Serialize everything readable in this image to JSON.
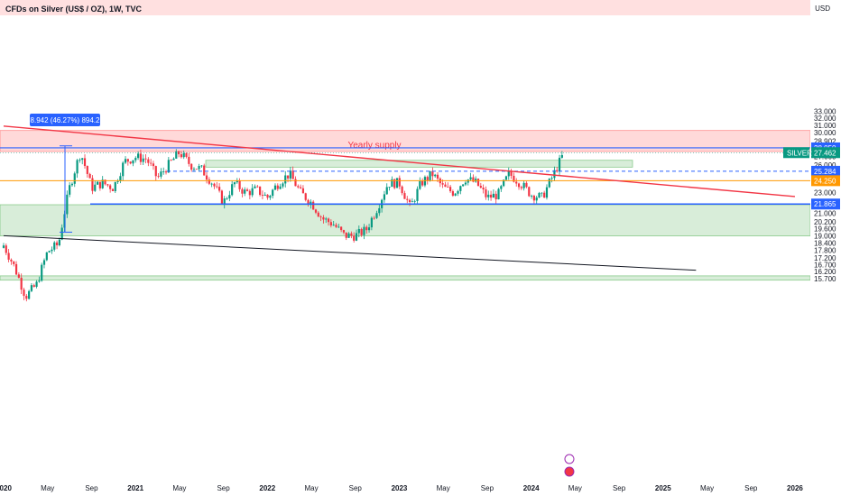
{
  "header": {
    "title": "CFDs on Silver (US$ / OZ), 1W, TVC",
    "currency": "USD"
  },
  "annotations": {
    "supply_label": "Yearly supply",
    "measure_label": "8.942 (46.27%) 894.2"
  },
  "price_axis": {
    "ticks": [
      "33.000",
      "32.000",
      "31.000",
      "30.000",
      "28.902",
      "28.000",
      "27.000",
      "26.000",
      "25.000",
      "24.000",
      "23.000",
      "22.000",
      "21.000",
      "20.200",
      "19.600",
      "19.000",
      "18.400",
      "17.800",
      "17.200",
      "16.700",
      "16.200",
      "15.700"
    ],
    "badges": [
      {
        "label": "28.050",
        "color": "#2962ff"
      },
      {
        "label": "27.462",
        "color": "#089981",
        "tag": "SILVER"
      },
      {
        "label": "25.284",
        "color": "#2962ff"
      },
      {
        "label": "24.250",
        "color": "#ff9800"
      },
      {
        "label": "21.865",
        "color": "#2962ff"
      }
    ]
  },
  "time_axis": {
    "labels": [
      "2020",
      "May",
      "Sep",
      "2021",
      "May",
      "Sep",
      "2022",
      "May",
      "Sep",
      "2023",
      "May",
      "Sep",
      "2024",
      "May",
      "Sep",
      "2025",
      "May",
      "Sep",
      "2026"
    ]
  },
  "colors": {
    "bull": "#089981",
    "bear": "#f23645",
    "supply_zone": "#ff5252",
    "demand_zone": "#4caf50",
    "trendline_red": "#f23645",
    "trendline_black": "#131722",
    "level_blue": "#2962ff",
    "level_orange": "#ff9800"
  },
  "chart_data": {
    "type": "candlestick",
    "symbol": "SILVER",
    "timeframe": "1W",
    "last_price": 27.462,
    "y_axis_scale": "log",
    "y_range": [
      15.5,
      35.0
    ],
    "x_range": [
      "2020-01",
      "2026-01"
    ],
    "support_levels": [
      21.865,
      24.25,
      25.284,
      28.05
    ],
    "zones": [
      {
        "label": "Yearly supply",
        "from": 27.6,
        "to": 30.3
      },
      {
        "label": "",
        "from": 25.75,
        "to": 26.55
      },
      {
        "label": "",
        "from": 18.98,
        "to": 21.8
      },
      {
        "label": "",
        "from": 15.6,
        "to": 15.9
      }
    ],
    "trendlines": [
      {
        "color": "red",
        "points": [
          [
            "2020-01",
            30.9
          ],
          [
            "2026-01",
            22.6
          ]
        ]
      },
      {
        "color": "black",
        "points": [
          [
            "2020-01",
            19.0
          ],
          [
            "2025-04",
            16.3
          ]
        ]
      }
    ],
    "measurement": {
      "change": 8.942,
      "percent": 46.27,
      "bars": 894.2
    },
    "series_monthly_close": [
      {
        "date": "2020-01",
        "value": 18.2
      },
      {
        "date": "2020-02",
        "value": 16.5
      },
      {
        "date": "2020-03",
        "value": 14.5
      },
      {
        "date": "2020-04",
        "value": 15.3
      },
      {
        "date": "2020-05",
        "value": 17.7
      },
      {
        "date": "2020-06",
        "value": 18.3
      },
      {
        "date": "2020-07",
        "value": 23.5
      },
      {
        "date": "2020-08",
        "value": 27.5
      },
      {
        "date": "2020-09",
        "value": 23.5
      },
      {
        "date": "2020-10",
        "value": 24.0
      },
      {
        "date": "2020-11",
        "value": 23.5
      },
      {
        "date": "2020-12",
        "value": 26.4
      },
      {
        "date": "2021-01",
        "value": 26.9
      },
      {
        "date": "2021-02",
        "value": 26.7
      },
      {
        "date": "2021-03",
        "value": 24.5
      },
      {
        "date": "2021-04",
        "value": 26.0
      },
      {
        "date": "2021-05",
        "value": 27.5
      },
      {
        "date": "2021-06",
        "value": 26.0
      },
      {
        "date": "2021-07",
        "value": 25.5
      },
      {
        "date": "2021-08",
        "value": 24.0
      },
      {
        "date": "2021-09",
        "value": 22.0
      },
      {
        "date": "2021-10",
        "value": 24.0
      },
      {
        "date": "2021-11",
        "value": 23.0
      },
      {
        "date": "2021-12",
        "value": 23.3
      },
      {
        "date": "2022-01",
        "value": 22.5
      },
      {
        "date": "2022-02",
        "value": 24.0
      },
      {
        "date": "2022-03",
        "value": 25.0
      },
      {
        "date": "2022-04",
        "value": 23.0
      },
      {
        "date": "2022-05",
        "value": 22.0
      },
      {
        "date": "2022-06",
        "value": 20.5
      },
      {
        "date": "2022-07",
        "value": 20.0
      },
      {
        "date": "2022-08",
        "value": 19.0
      },
      {
        "date": "2022-09",
        "value": 19.0
      },
      {
        "date": "2022-10",
        "value": 19.5
      },
      {
        "date": "2022-11",
        "value": 21.5
      },
      {
        "date": "2022-12",
        "value": 24.0
      },
      {
        "date": "2023-01",
        "value": 24.0
      },
      {
        "date": "2023-02",
        "value": 21.5
      },
      {
        "date": "2023-03",
        "value": 24.0
      },
      {
        "date": "2023-04",
        "value": 25.0
      },
      {
        "date": "2023-05",
        "value": 23.5
      },
      {
        "date": "2023-06",
        "value": 23.0
      },
      {
        "date": "2023-07",
        "value": 24.5
      },
      {
        "date": "2023-08",
        "value": 24.0
      },
      {
        "date": "2023-09",
        "value": 22.5
      },
      {
        "date": "2023-10",
        "value": 22.8
      },
      {
        "date": "2023-11",
        "value": 25.0
      },
      {
        "date": "2023-12",
        "value": 24.0
      },
      {
        "date": "2024-01",
        "value": 22.8
      },
      {
        "date": "2024-02",
        "value": 22.5
      },
      {
        "date": "2024-03",
        "value": 24.8
      },
      {
        "date": "2024-04",
        "value": 27.46
      }
    ]
  }
}
